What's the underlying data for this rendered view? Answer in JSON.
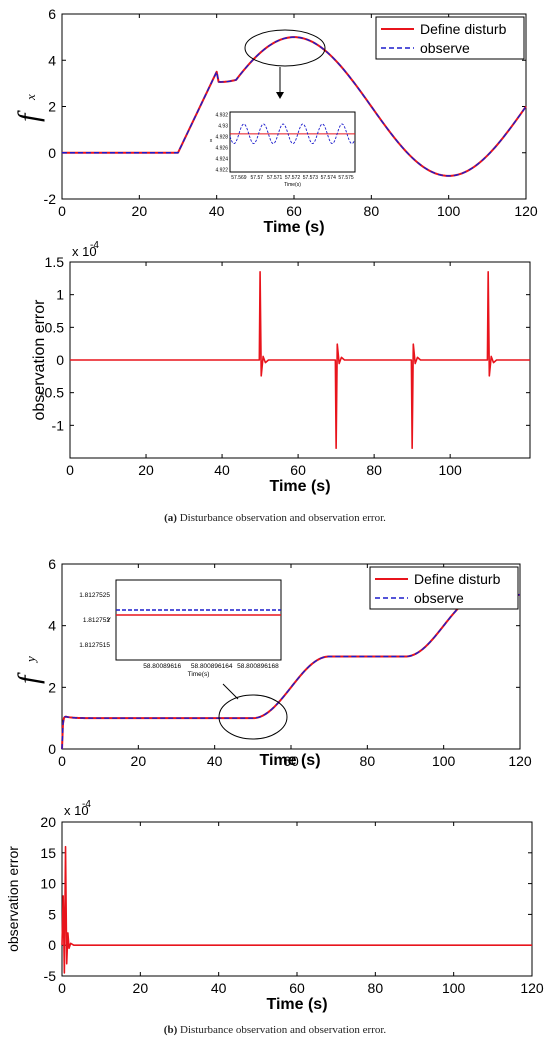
{
  "captions": {
    "a_tag": "(a)",
    "a_text": "Disturbance observation and observation error.",
    "b_tag": "(b)",
    "b_text": "Disturbance observation and observation error."
  },
  "colors": {
    "defined": "#e8141c",
    "observed": "#1c1ccc",
    "axis": "#000000",
    "error": "#e8141c"
  },
  "chart_data": [
    {
      "id": "fx",
      "type": "line",
      "ylabel_main": "f",
      "ylabel_sub": "x",
      "xlabel": "Time (s)",
      "xlim": [
        0,
        120
      ],
      "ylim": [
        -2,
        6
      ],
      "xticks": [
        0,
        20,
        40,
        60,
        80,
        100,
        120
      ],
      "yticks": [
        -2,
        0,
        2,
        4,
        6
      ],
      "legend": {
        "placement": "top-right",
        "entries": [
          "Define disturb",
          "observe"
        ]
      },
      "series": [
        {
          "name": "Define disturb",
          "style": "solid",
          "x": [
            0,
            30,
            60,
            100,
            120
          ],
          "y": [
            0,
            0,
            5,
            -1,
            2
          ]
        },
        {
          "name": "observe",
          "style": "dashed",
          "x": [
            0,
            30,
            60,
            100,
            120
          ],
          "y": [
            0,
            0,
            5,
            -1,
            2
          ]
        }
      ],
      "inset": {
        "ylabel": "x",
        "xlabel": "Time(s)",
        "xticks": [
          "57.569",
          "57.57",
          "57.571",
          "57.572",
          "57.573",
          "57.574",
          "57.575"
        ],
        "yticks": [
          "4.932",
          "4.93",
          "4.928",
          "4.926",
          "4.924",
          "4.922"
        ],
        "ylim": [
          4.9215,
          4.9325
        ],
        "xlim": [
          57.5685,
          57.5755
        ],
        "defined_level": 4.9285,
        "observed_amplitude": 0.0018,
        "observed_period": 0.0011
      }
    },
    {
      "id": "ex",
      "type": "line",
      "ylabel": "observation error",
      "xlabel": "Time (s)",
      "exponent": "x 10",
      "exponent_power": "-4",
      "xlim": [
        0,
        121
      ],
      "ylim": [
        -1.5,
        1.5
      ],
      "xticks": [
        0,
        20,
        40,
        60,
        80,
        100
      ],
      "yticks": [
        "1.5",
        "1",
        "0.5",
        "0",
        "-0.5",
        "-1"
      ],
      "ytick_values": [
        1.5,
        1,
        0.5,
        0,
        -0.5,
        -1
      ],
      "spikes": [
        {
          "t": 50,
          "peak": 1.35
        },
        {
          "t": 70,
          "peak": -1.35
        },
        {
          "t": 90,
          "peak": -1.35
        },
        {
          "t": 110,
          "peak": 1.35
        }
      ]
    },
    {
      "id": "fy",
      "type": "line",
      "ylabel_main": "f",
      "ylabel_sub": "y",
      "xlabel": "Time (s)",
      "xlim": [
        0,
        120
      ],
      "ylim": [
        0,
        6
      ],
      "xticks": [
        0,
        20,
        40,
        60,
        80,
        100,
        120
      ],
      "yticks": [
        0,
        2,
        4,
        6
      ],
      "legend": {
        "placement": "top-right",
        "entries": [
          "Define disturb",
          "observe"
        ]
      },
      "series": [
        {
          "name": "Define disturb",
          "style": "solid",
          "x": [
            0,
            1,
            3,
            50,
            70,
            90,
            110,
            120
          ],
          "y": [
            0,
            1.05,
            1,
            1,
            3,
            3,
            5,
            5
          ]
        },
        {
          "name": "observe",
          "style": "dashed",
          "x": [
            0,
            1,
            3,
            50,
            70,
            90,
            110,
            120
          ],
          "y": [
            0,
            1.05,
            1,
            1,
            3,
            3,
            5,
            5
          ]
        }
      ],
      "inset": {
        "ylabel": "Y",
        "xlabel": "Time(s)",
        "xticks": [
          "58.80089616",
          "58.800896164",
          "58.800896168"
        ],
        "yticks": [
          "1.8127525",
          "1.812752",
          "1.8127515"
        ],
        "ylim": [
          1.8127512,
          1.8127528
        ],
        "defined_level": 1.8127521,
        "observed_level": 1.8127522
      }
    },
    {
      "id": "ey",
      "type": "line",
      "ylabel": "observation error",
      "xlabel": "Time (s)",
      "exponent": "x 10",
      "exponent_power": "-4",
      "xlim": [
        0,
        120
      ],
      "ylim": [
        -5,
        20
      ],
      "xticks": [
        0,
        20,
        40,
        60,
        80,
        100,
        120
      ],
      "yticks": [
        20,
        15,
        10,
        5,
        0,
        -5
      ],
      "transient": {
        "t": [
          0,
          0.3,
          0.6,
          0.9,
          1.2,
          1.5,
          1.8,
          2.2,
          3
        ],
        "y": [
          0,
          8,
          -4.5,
          16,
          -3,
          2,
          -0.5,
          0.3,
          0
        ]
      }
    }
  ]
}
